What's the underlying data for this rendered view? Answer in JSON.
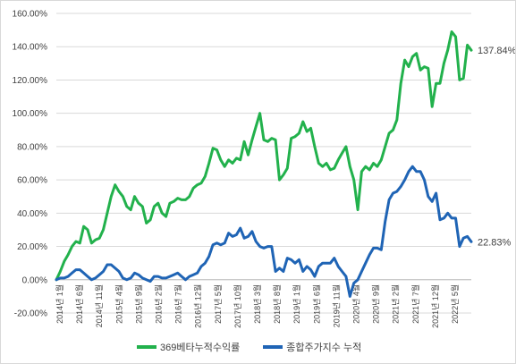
{
  "chart_data": {
    "type": "line",
    "title": "",
    "xlabel": "",
    "ylabel": "",
    "ylim": [
      -20,
      160
    ],
    "y_tick_labels": [
      "-20.00%",
      "0.00%",
      "20.00%",
      "40.00%",
      "60.00%",
      "80.00%",
      "100.00%",
      "120.00%",
      "140.00%",
      "160.00%"
    ],
    "x_tick_labels": [
      "2014년 1월",
      "2014년 6월",
      "2014년 11월",
      "2015년 4월",
      "2015년 9월",
      "2016년 2월",
      "2016년 7월",
      "2016년 12월",
      "2017년 5월",
      "2017년 10월",
      "2018년 3월",
      "2018년 8월",
      "2019년 1월",
      "2019년 6월",
      "2019년 11월",
      "2020년 4월",
      "2020년 9월",
      "2021년 2월",
      "2021년 7월",
      "2021년 12월",
      "2022년 5월"
    ],
    "grid": "horizontal",
    "legend_position": "bottom",
    "series": [
      {
        "name": "369베타누적수익률",
        "color": "#22b14c",
        "end_label": "137.84%",
        "values": [
          0,
          5,
          11,
          15,
          20,
          23,
          22,
          32,
          30,
          22,
          24,
          25,
          30,
          40,
          50,
          57,
          53,
          50,
          44,
          42,
          50,
          46,
          44,
          34,
          36,
          44,
          46,
          40,
          38,
          46,
          47,
          49,
          48,
          48,
          50,
          55,
          57,
          58,
          62,
          70,
          79,
          78,
          72,
          68,
          72,
          70,
          73,
          72,
          83,
          75,
          84,
          92,
          100,
          84,
          83,
          85,
          84,
          60,
          63,
          67,
          85,
          86,
          88,
          95,
          89,
          91,
          80,
          70,
          68,
          70,
          66,
          67,
          72,
          76,
          80,
          68,
          60,
          42,
          65,
          68,
          66,
          70,
          68,
          72,
          80,
          88,
          90,
          96,
          118,
          132,
          128,
          134,
          136,
          126,
          128,
          127,
          104,
          118,
          118,
          130,
          138,
          149,
          146,
          120,
          121,
          141,
          137.84
        ]
      },
      {
        "name": "종합주가지수 누적",
        "color": "#1f64b5",
        "end_label": "22.83%",
        "values": [
          0,
          1,
          1,
          2,
          4,
          6,
          6,
          4,
          2,
          0,
          1,
          3,
          5,
          9,
          9,
          7,
          5,
          1,
          0,
          1,
          4,
          3,
          1,
          0,
          -1,
          2,
          2,
          1,
          1,
          2,
          3,
          4,
          2,
          0,
          2,
          3,
          4,
          8,
          10,
          14,
          21,
          22,
          21,
          22,
          28,
          26,
          27,
          31,
          25,
          26,
          29,
          23,
          20,
          19,
          20,
          20,
          5,
          7,
          5,
          13,
          12,
          10,
          12,
          5,
          8,
          6,
          2,
          8,
          10,
          10,
          10,
          13,
          8,
          5,
          2,
          -10,
          -2,
          0,
          5,
          10,
          15,
          19,
          19,
          18,
          35,
          48,
          52,
          53,
          56,
          60,
          65,
          68,
          65,
          65,
          60,
          50,
          47,
          52,
          36,
          37,
          40,
          37,
          37,
          20,
          25,
          26,
          22.83
        ]
      }
    ]
  }
}
